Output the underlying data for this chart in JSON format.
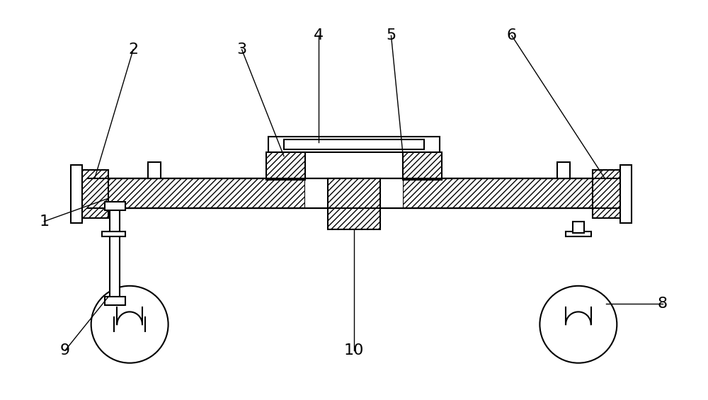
{
  "bg_color": "#ffffff",
  "line_color": "#000000",
  "figsize": [
    10.0,
    5.65
  ],
  "dpi": 100,
  "label_fontsize": 16
}
